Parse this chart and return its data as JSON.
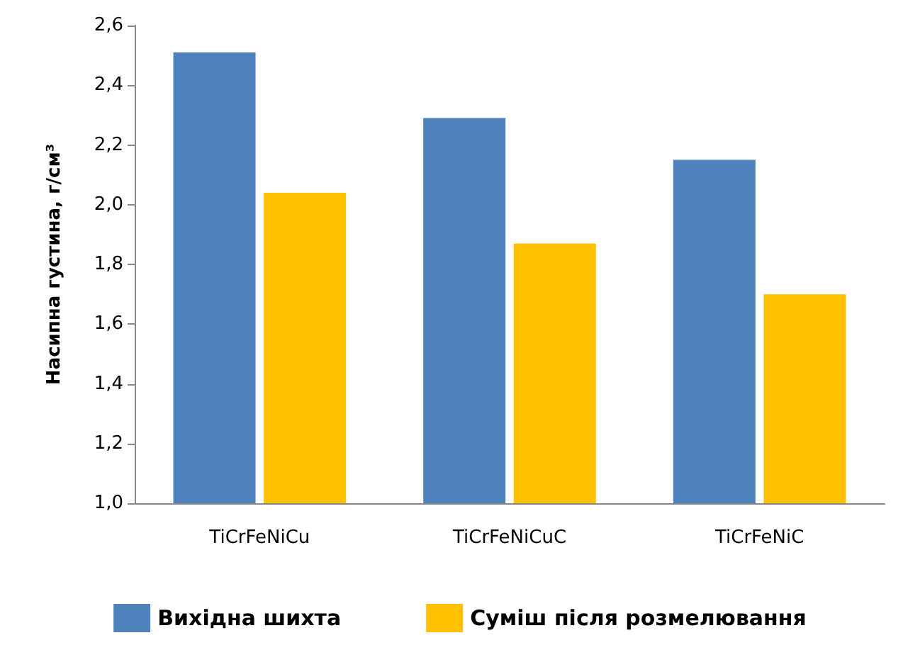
{
  "chart_data": {
    "type": "bar",
    "ylabel": "Насипна густина, г/см³",
    "categories": [
      "TiCrFeNiCu",
      "TiCrFeNiCuC",
      "TiCrFeNiC"
    ],
    "series": [
      {
        "name": "Вихідна шихта",
        "color": "#4f81bd",
        "values": [
          2.51,
          2.29,
          2.15
        ]
      },
      {
        "name": "Суміш після розмелювання",
        "color": "#ffc000",
        "values": [
          2.04,
          1.87,
          1.7
        ]
      }
    ],
    "ylim": [
      1.0,
      2.6
    ],
    "yticks": [
      {
        "value": 1.0,
        "label": "1,0"
      },
      {
        "value": 1.2,
        "label": "1,2"
      },
      {
        "value": 1.4,
        "label": "1,4"
      },
      {
        "value": 1.6,
        "label": "1,6"
      },
      {
        "value": 1.8,
        "label": "1,8"
      },
      {
        "value": 2.0,
        "label": "2,0"
      },
      {
        "value": 2.2,
        "label": "2,2"
      },
      {
        "value": 2.4,
        "label": "2,4"
      },
      {
        "value": 2.6,
        "label": "2,6"
      }
    ],
    "legend": "bottom"
  }
}
